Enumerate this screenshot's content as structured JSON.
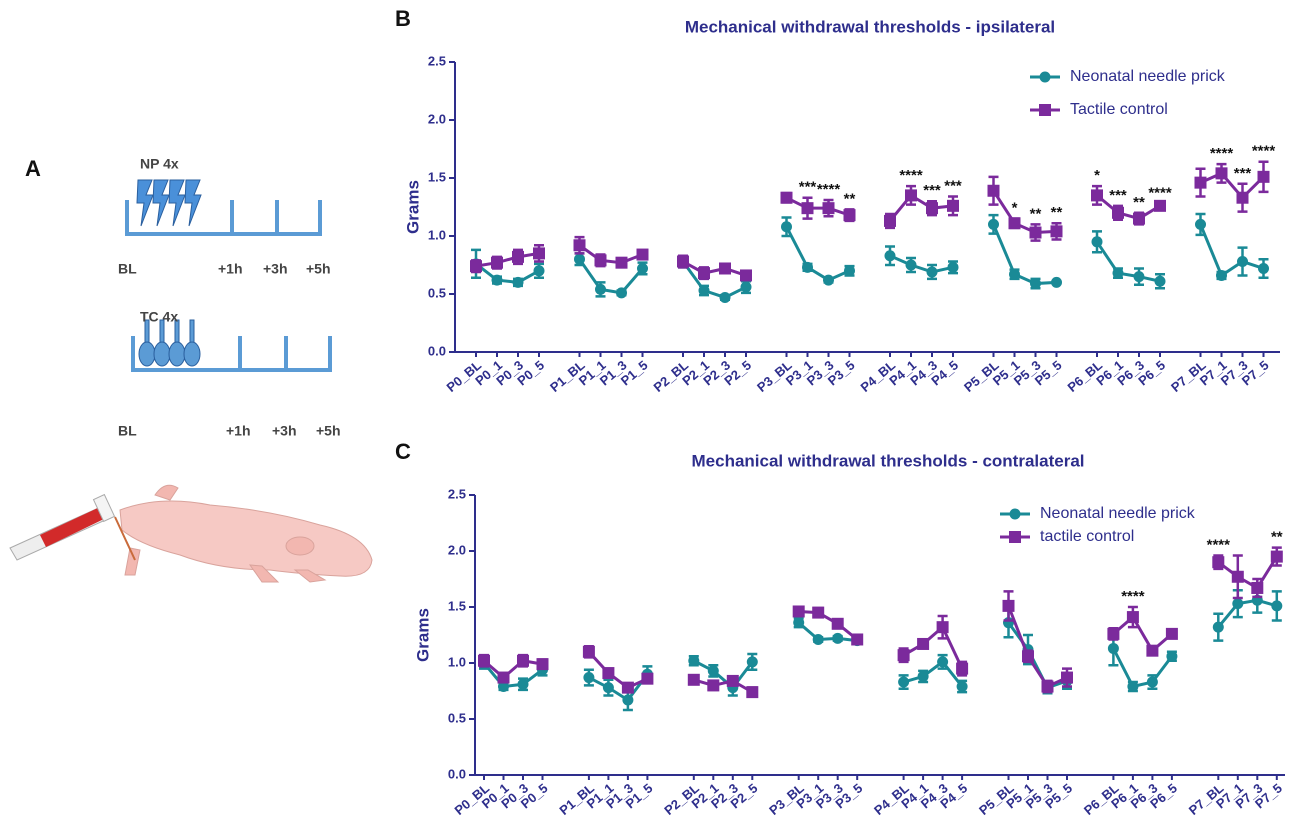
{
  "chart_data": [
    {
      "type": "line",
      "panel_label": "B",
      "title": "Mechanical withdrawal thresholds - ipsilateral",
      "ylabel": "Grams",
      "categories": [
        "P0_BL",
        "P0_1",
        "P0_3",
        "P0_5",
        "P1_BL",
        "P1_1",
        "P1_3",
        "P1_5",
        "P2_BL",
        "P2_1",
        "P2_3",
        "P2_5",
        "P3_BL",
        "P3_1",
        "P3_3",
        "P3_5",
        "P4_BL",
        "P4_1",
        "P4_3",
        "P4_5",
        "P5_BL",
        "P5_1",
        "P5_3",
        "P5_5",
        "P6_BL",
        "P6_1",
        "P6_3",
        "P6_5",
        "P7_BL",
        "P7_1",
        "P7_3",
        "P7_5"
      ],
      "series": [
        {
          "name": "Neonatal needle prick",
          "color": "#1a8a96",
          "marker": "circle",
          "values": [
            0.76,
            0.62,
            0.6,
            0.7,
            0.8,
            0.54,
            0.51,
            0.72,
            0.78,
            0.53,
            0.47,
            0.56,
            1.08,
            0.73,
            0.62,
            0.7,
            0.83,
            0.75,
            0.69,
            0.73,
            1.1,
            0.67,
            0.59,
            0.6,
            0.95,
            0.68,
            0.65,
            0.61,
            1.1,
            0.66,
            0.78,
            0.72
          ],
          "errors": [
            0.12,
            0.03,
            0.03,
            0.06,
            0.05,
            0.06,
            0.02,
            0.05,
            0.05,
            0.04,
            0.02,
            0.05,
            0.08,
            0.03,
            0.02,
            0.04,
            0.08,
            0.06,
            0.06,
            0.05,
            0.08,
            0.04,
            0.04,
            0.01,
            0.09,
            0.04,
            0.07,
            0.06,
            0.09,
            0.03,
            0.12,
            0.08
          ]
        },
        {
          "name": "Tactile control",
          "color": "#7b2a9c",
          "marker": "square",
          "values": [
            0.74,
            0.77,
            0.82,
            0.85,
            0.92,
            0.79,
            0.77,
            0.84,
            0.78,
            0.68,
            0.72,
            0.66,
            1.33,
            1.24,
            1.24,
            1.18,
            1.13,
            1.35,
            1.24,
            1.26,
            1.39,
            1.11,
            1.03,
            1.04,
            1.35,
            1.2,
            1.15,
            1.26,
            1.46,
            1.54,
            1.33,
            1.51
          ],
          "errors": [
            0.05,
            0.05,
            0.06,
            0.07,
            0.07,
            0.05,
            0.02,
            0.03,
            0.05,
            0.05,
            0.04,
            0.03,
            0.04,
            0.09,
            0.07,
            0.05,
            0.06,
            0.08,
            0.06,
            0.08,
            0.12,
            0.04,
            0.07,
            0.07,
            0.08,
            0.06,
            0.05,
            0.02,
            0.12,
            0.08,
            0.12,
            0.13
          ]
        }
      ],
      "annotations": [
        null,
        null,
        null,
        null,
        null,
        null,
        null,
        null,
        null,
        null,
        null,
        null,
        null,
        "***",
        "****",
        "**",
        null,
        "****",
        "***",
        "***",
        null,
        "*",
        "**",
        "**",
        "*",
        "***",
        "**",
        "****",
        null,
        "****",
        "***",
        "****"
      ],
      "ylim": [
        0,
        2.5
      ],
      "yticks": [
        {
          "value": 0,
          "label": "0.0"
        },
        0.5,
        {
          "value": 1,
          "label": "1.0"
        },
        1.5,
        {
          "value": 2,
          "label": "2.0"
        },
        2.5
      ],
      "legend": "upper right"
    },
    {
      "type": "line",
      "panel_label": "C",
      "title": "Mechanical withdrawal thresholds - contralateral",
      "ylabel": "Grams",
      "categories": [
        "P0_BL",
        "P0_1",
        "P0_3",
        "P0_5",
        "P1_BL",
        "P1_1",
        "P1_3",
        "P1_5",
        "P2_BL",
        "P2_1",
        "P2_3",
        "P2_5",
        "P3_BL",
        "P3_1",
        "P3_3",
        "P3_5",
        "P4_BL",
        "P4_1",
        "P4_3",
        "P4_5",
        "P5_BL",
        "P5_1",
        "P5_3",
        "P5_5",
        "P6_BL",
        "P6_1",
        "P6_3",
        "P6_5",
        "P7_BL",
        "P7_1",
        "P7_3",
        "P7_5"
      ],
      "series": [
        {
          "name": "Neonatal needle prick",
          "color": "#1a8a96",
          "marker": "circle",
          "values": [
            1.0,
            0.79,
            0.81,
            0.94,
            0.87,
            0.78,
            0.67,
            0.9,
            1.02,
            0.93,
            0.78,
            1.01,
            1.36,
            1.21,
            1.22,
            1.2,
            0.83,
            0.88,
            1.01,
            0.79,
            1.36,
            1.12,
            0.78,
            0.84,
            1.13,
            0.79,
            0.83,
            1.06,
            1.32,
            1.53,
            1.56,
            1.51
          ],
          "errors": [
            0.05,
            0.03,
            0.05,
            0.05,
            0.07,
            0.07,
            0.09,
            0.07,
            0.04,
            0.05,
            0.07,
            0.07,
            0.04,
            0.02,
            0.02,
            0.02,
            0.06,
            0.05,
            0.06,
            0.05,
            0.13,
            0.13,
            0.05,
            0.07,
            0.15,
            0.04,
            0.06,
            0.04,
            0.12,
            0.12,
            0.11,
            0.13
          ]
        },
        {
          "name": "tactile control",
          "color": "#7b2a9c",
          "marker": "square",
          "values": [
            1.02,
            0.87,
            1.02,
            0.99,
            1.1,
            0.91,
            0.78,
            0.86,
            0.85,
            0.8,
            0.84,
            0.74,
            1.46,
            1.45,
            1.35,
            1.21,
            1.07,
            1.17,
            1.32,
            0.95,
            1.51,
            1.06,
            0.79,
            0.87,
            1.26,
            1.41,
            1.11,
            1.26,
            1.9,
            1.77,
            1.67,
            1.95
          ],
          "errors": [
            0.05,
            0.04,
            0.05,
            0.04,
            0.05,
            0.04,
            0.03,
            0.04,
            0.04,
            0.04,
            0.04,
            0.04,
            0.03,
            0.04,
            0.04,
            0.02,
            0.06,
            0.02,
            0.1,
            0.06,
            0.13,
            0.05,
            0.05,
            0.08,
            0.05,
            0.09,
            0.03,
            0.02,
            0.06,
            0.19,
            0.08,
            0.08
          ]
        }
      ],
      "annotations": [
        null,
        null,
        null,
        null,
        null,
        null,
        null,
        null,
        null,
        null,
        null,
        null,
        null,
        null,
        null,
        null,
        null,
        null,
        null,
        null,
        null,
        null,
        null,
        null,
        null,
        "****",
        null,
        null,
        "****",
        null,
        null,
        "**"
      ],
      "ylim": [
        0,
        2.5
      ],
      "yticks": [
        {
          "value": 0,
          "label": "0.0"
        },
        0.5,
        {
          "value": 1,
          "label": "1.0"
        },
        1.5,
        {
          "value": 2,
          "label": "2.0"
        },
        2.5
      ],
      "legend": "upper right"
    }
  ],
  "diagram": {
    "panel_label": "A",
    "timeline_1": {
      "label": "NP 4x",
      "marks": [
        "BL",
        "+1h",
        "+3h",
        "+5h"
      ]
    },
    "timeline_2": {
      "label": "TC 4x",
      "marks": [
        "BL",
        "+1h",
        "+3h",
        "+5h"
      ]
    }
  }
}
